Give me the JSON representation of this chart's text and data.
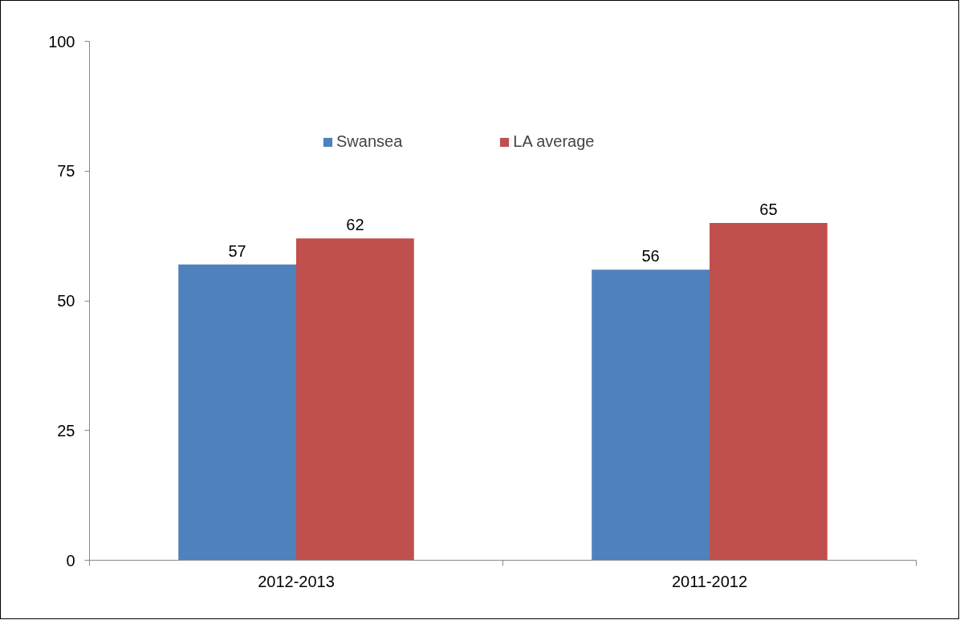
{
  "chart_data": {
    "type": "bar",
    "categories": [
      "2012-2013",
      "2011-2012"
    ],
    "series": [
      {
        "name": "Swansea",
        "color": "#4f81bd",
        "values": [
          57,
          56
        ]
      },
      {
        "name": "LA average",
        "color": "#c0504d",
        "values": [
          62,
          65
        ]
      }
    ],
    "ylim": [
      0,
      100
    ],
    "yticks": [
      0,
      25,
      50,
      75,
      100
    ],
    "grid": false,
    "legend": "top",
    "data_labels": true
  }
}
